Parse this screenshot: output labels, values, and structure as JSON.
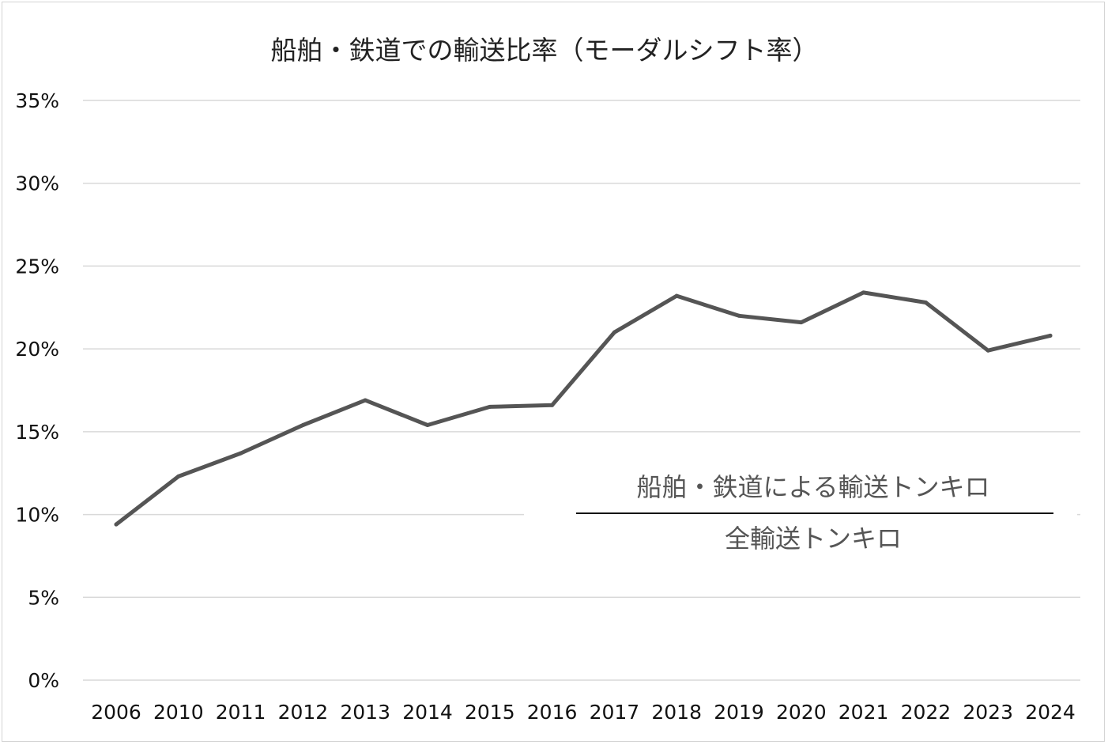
{
  "chart_data": {
    "type": "line",
    "title": "船舶・鉄道での輸送比率（モーダルシフト率）",
    "categories": [
      "2006",
      "2010",
      "2011",
      "2012",
      "2013",
      "2014",
      "2015",
      "2016",
      "2017",
      "2018",
      "2019",
      "2020",
      "2021",
      "2022",
      "2023",
      "2024"
    ],
    "series": [
      {
        "name": "モーダルシフト率",
        "values": [
          9.4,
          12.3,
          13.7,
          15.4,
          16.9,
          15.4,
          16.5,
          16.6,
          21.0,
          23.2,
          22.0,
          21.6,
          23.4,
          22.8,
          19.9,
          20.8
        ],
        "color": "#555555"
      }
    ],
    "y_ticks": [
      0,
      5,
      10,
      15,
      20,
      25,
      30,
      35
    ],
    "y_tick_labels": [
      "0%",
      "5%",
      "10%",
      "15%",
      "20%",
      "25%",
      "30%",
      "35%"
    ],
    "ylim": [
      0,
      35
    ],
    "xlabel": "",
    "ylabel": "",
    "grid": true,
    "legend": "none",
    "annotation": {
      "numerator": "船舶・鉄道による輸送トンキロ",
      "denominator": "全輸送トンキロ"
    }
  }
}
